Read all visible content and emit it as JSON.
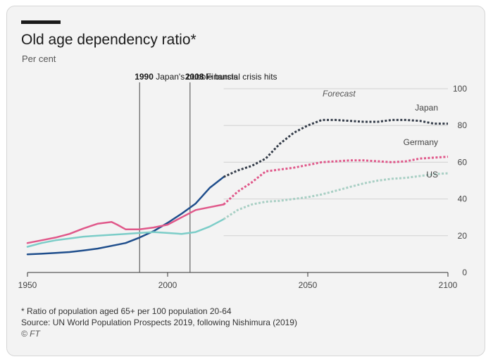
{
  "header": {
    "title": "Old age dependency ratio*",
    "subtitle": "Per cent"
  },
  "chart_data": {
    "type": "line",
    "xlim": [
      1950,
      2100
    ],
    "ylim": [
      0,
      100
    ],
    "x_ticks": [
      "1950",
      "2000",
      "2050",
      "2100"
    ],
    "y_ticks": [
      "0",
      "20",
      "40",
      "60",
      "80",
      "100"
    ],
    "forecast_start": 2020,
    "forecast_label": "Forecast",
    "grid": true,
    "colors": {
      "Japan": "#1f4e8c",
      "Japan_forecast": "#333b48",
      "Germany": "#e0588a",
      "US": "#7ccdc8",
      "US_forecast": "#a8cfc4",
      "grid": "#d2d2d2",
      "axis": "#333333"
    },
    "events": [
      {
        "year": 1990,
        "year_label": "1990",
        "label": "Japan's bubble bursts"
      },
      {
        "year": 2008,
        "year_label": "2008",
        "label": "Financial crisis hits"
      }
    ],
    "series": [
      {
        "name": "Japan",
        "data": [
          [
            1950,
            9.9
          ],
          [
            1955,
            10.2
          ],
          [
            1960,
            10.6
          ],
          [
            1965,
            11.1
          ],
          [
            1970,
            12
          ],
          [
            1975,
            13
          ],
          [
            1980,
            14.5
          ],
          [
            1985,
            16
          ],
          [
            1990,
            19
          ],
          [
            1995,
            22.5
          ],
          [
            2000,
            27
          ],
          [
            2005,
            32
          ],
          [
            2010,
            37.5
          ],
          [
            2015,
            46
          ],
          [
            2020,
            52
          ],
          [
            2025,
            55.5
          ],
          [
            2030,
            58
          ],
          [
            2035,
            62
          ],
          [
            2040,
            70
          ],
          [
            2045,
            76
          ],
          [
            2050,
            80
          ],
          [
            2055,
            83
          ],
          [
            2060,
            83
          ],
          [
            2065,
            82.5
          ],
          [
            2070,
            82
          ],
          [
            2075,
            82
          ],
          [
            2080,
            83
          ],
          [
            2085,
            83
          ],
          [
            2090,
            82.5
          ],
          [
            2095,
            81
          ],
          [
            2100,
            81
          ]
        ]
      },
      {
        "name": "Germany",
        "data": [
          [
            1950,
            16
          ],
          [
            1955,
            17.5
          ],
          [
            1960,
            19
          ],
          [
            1965,
            21
          ],
          [
            1970,
            24
          ],
          [
            1975,
            26.5
          ],
          [
            1980,
            27.5
          ],
          [
            1982,
            26
          ],
          [
            1985,
            23.5
          ],
          [
            1990,
            23.5
          ],
          [
            1995,
            24.5
          ],
          [
            2000,
            26
          ],
          [
            2005,
            30
          ],
          [
            2010,
            34
          ],
          [
            2015,
            35.5
          ],
          [
            2020,
            37
          ],
          [
            2025,
            44
          ],
          [
            2030,
            49
          ],
          [
            2035,
            55
          ],
          [
            2040,
            56
          ],
          [
            2045,
            57
          ],
          [
            2050,
            58.5
          ],
          [
            2055,
            60
          ],
          [
            2060,
            60.5
          ],
          [
            2065,
            61
          ],
          [
            2070,
            61
          ],
          [
            2075,
            60.5
          ],
          [
            2080,
            60
          ],
          [
            2085,
            60.5
          ],
          [
            2090,
            62
          ],
          [
            2095,
            62.5
          ],
          [
            2100,
            63
          ]
        ]
      },
      {
        "name": "US",
        "data": [
          [
            1950,
            14
          ],
          [
            1955,
            16
          ],
          [
            1960,
            17.5
          ],
          [
            1965,
            18.5
          ],
          [
            1970,
            19.5
          ],
          [
            1975,
            20
          ],
          [
            1980,
            20.5
          ],
          [
            1985,
            21
          ],
          [
            1990,
            21.5
          ],
          [
            1995,
            22
          ],
          [
            2000,
            21.5
          ],
          [
            2005,
            21
          ],
          [
            2010,
            22
          ],
          [
            2015,
            25
          ],
          [
            2020,
            29
          ],
          [
            2025,
            34
          ],
          [
            2030,
            37
          ],
          [
            2035,
            38.5
          ],
          [
            2040,
            39
          ],
          [
            2045,
            40
          ],
          [
            2050,
            41
          ],
          [
            2055,
            42.5
          ],
          [
            2060,
            44.5
          ],
          [
            2065,
            46.5
          ],
          [
            2070,
            48.5
          ],
          [
            2075,
            50
          ],
          [
            2080,
            51
          ],
          [
            2085,
            51.5
          ],
          [
            2090,
            52.5
          ],
          [
            2095,
            53.5
          ],
          [
            2100,
            54
          ]
        ]
      }
    ]
  },
  "footer": {
    "note": "* Ratio of population aged 65+ per 100 population 20-64",
    "source": "Source: UN World Population Prospects 2019, following Nishimura (2019)",
    "copyright": "© FT"
  }
}
